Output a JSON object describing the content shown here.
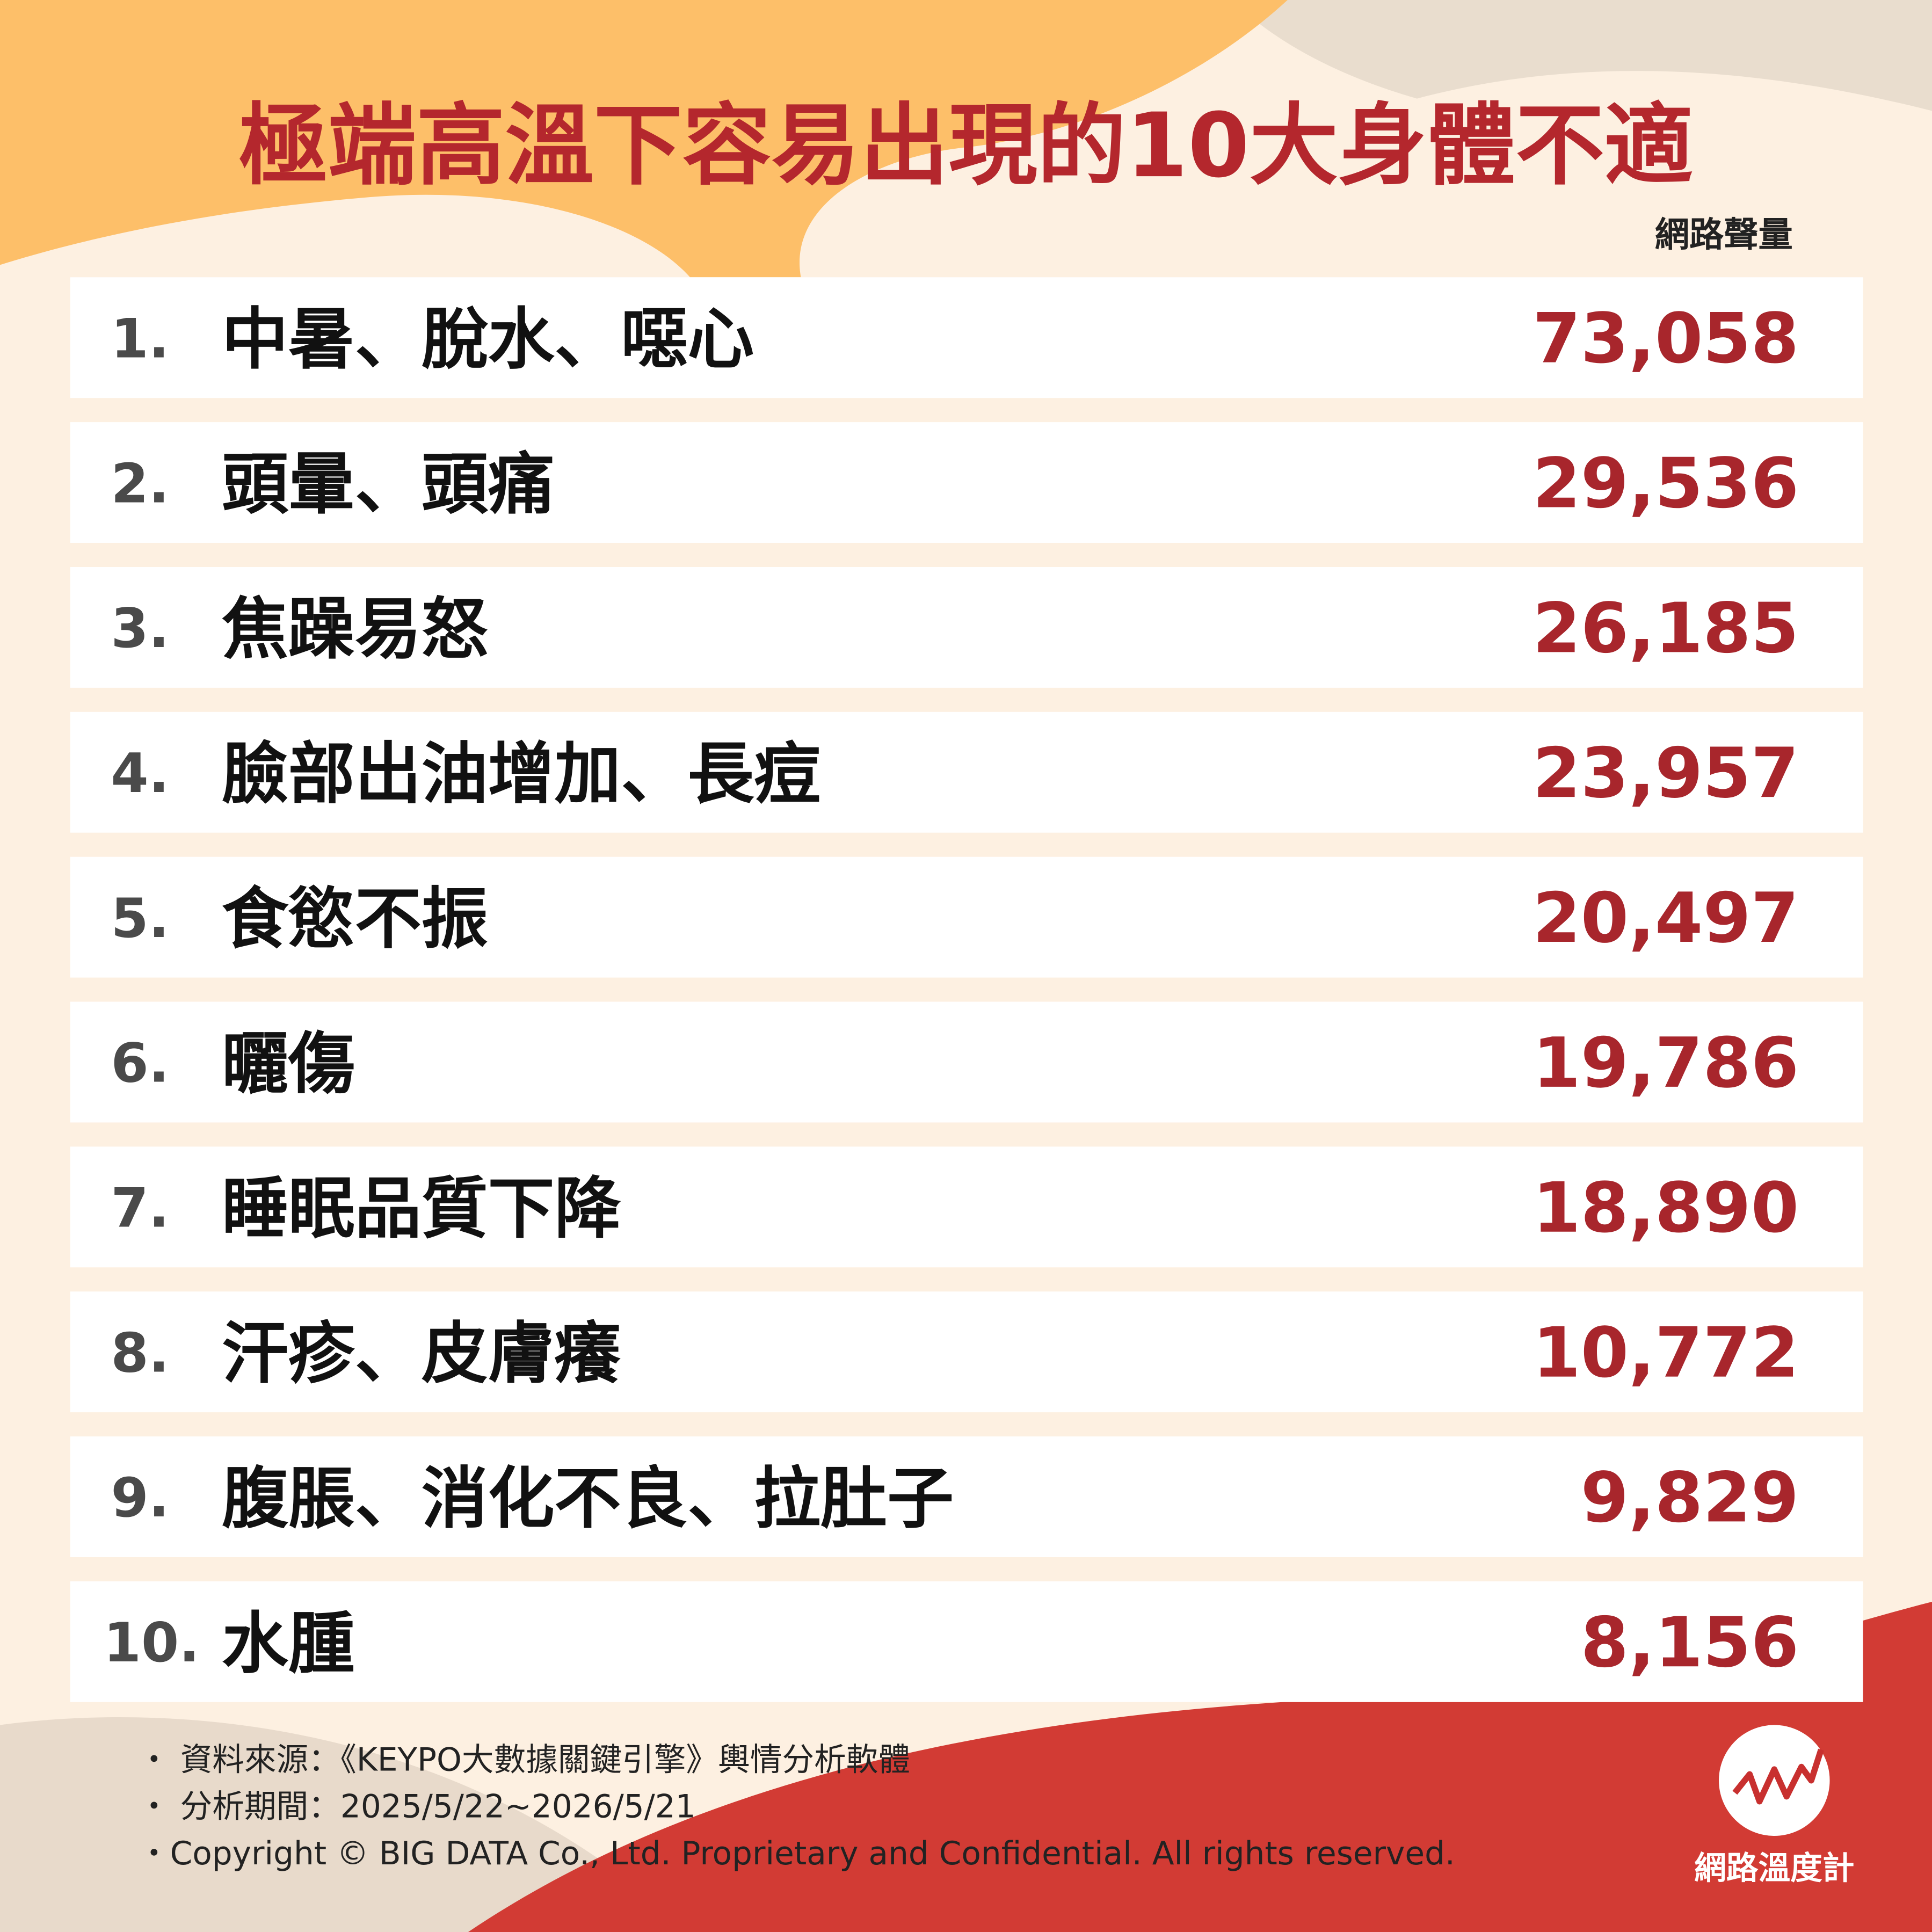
{
  "header": {
    "title": "極端高溫下容易出現的10大身體不適",
    "unit_label": "網路聲量"
  },
  "table": {
    "rows": [
      {
        "rank": "1.",
        "label": "中暑、脫水、噁心",
        "value": "73,058"
      },
      {
        "rank": "2.",
        "label": "頭暈、頭痛",
        "value": "29,536"
      },
      {
        "rank": "3.",
        "label": "焦躁易怒",
        "value": "26,185"
      },
      {
        "rank": "4.",
        "label": "臉部出油增加、長痘",
        "value": "23,957"
      },
      {
        "rank": "5.",
        "label": "食慾不振",
        "value": "20,497"
      },
      {
        "rank": "6.",
        "label": "曬傷",
        "value": "19,786"
      },
      {
        "rank": "7.",
        "label": "睡眠品質下降",
        "value": "18,890"
      },
      {
        "rank": "8.",
        "label": "汗疹、皮膚癢",
        "value": "10,772"
      },
      {
        "rank": "9.",
        "label": "腹脹、消化不良、拉肚子",
        "value": "9,829"
      },
      {
        "rank": "10.",
        "label": "水腫",
        "value": "8,156"
      }
    ]
  },
  "footer": {
    "lines": [
      "・ 資料來源：《KEYPO大數據關鍵引擎》輿情分析軟體",
      "・ 分析期間：2025/5/22~2026/5/21",
      "・Copyright © BIG DATA Co., Ltd. Proprietary and Confidential. All rights reserved."
    ],
    "logo": "網路溫度計"
  }
}
